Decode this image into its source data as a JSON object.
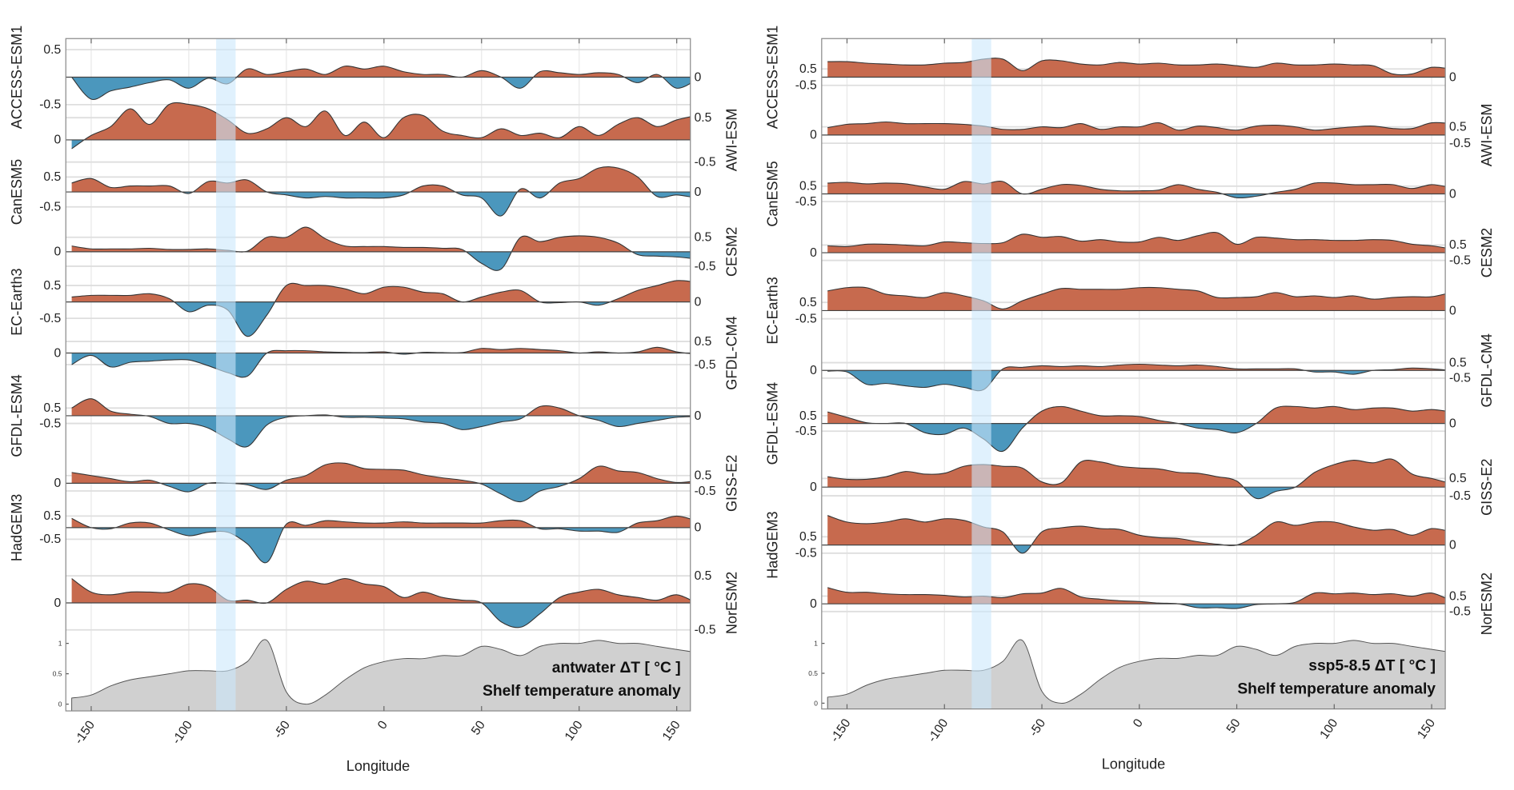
{
  "chart_data": [
    {
      "type": "area",
      "title": "antwater ΔT [ °C ]",
      "subtitle": "Shelf temperature anomaly",
      "xlabel": "Longitude",
      "xlim": [
        -163,
        157
      ],
      "xticks": [
        -150,
        -100,
        -50,
        0,
        50,
        100,
        150
      ],
      "yticks": [
        -0.5,
        0,
        0.5
      ],
      "grid": true,
      "highlight_band": [
        -86,
        -76
      ],
      "colors": {
        "positive": "#c76a4e",
        "negative": "#4b97bd",
        "band": "#cbe7fb",
        "land": "#d0d0d0"
      },
      "x": [
        -160,
        -150,
        -140,
        -130,
        -120,
        -110,
        -100,
        -90,
        -80,
        -70,
        -60,
        -50,
        -40,
        -30,
        -20,
        -10,
        0,
        10,
        20,
        30,
        40,
        50,
        60,
        70,
        80,
        90,
        100,
        110,
        120,
        130,
        140,
        150,
        160
      ],
      "series": [
        {
          "name": "ACCESS-ESM1",
          "values": [
            0,
            -0.4,
            -0.25,
            -0.18,
            -0.1,
            -0.05,
            -0.2,
            -0.02,
            -0.12,
            0.15,
            0.05,
            0.1,
            0.15,
            0.05,
            0.2,
            0.15,
            0.2,
            0.1,
            0.05,
            0.05,
            0,
            0.12,
            0,
            -0.2,
            0.1,
            0.08,
            0.05,
            0.08,
            0.05,
            -0.1,
            0.05,
            -0.2,
            -0.05
          ]
        },
        {
          "name": "AWI-ESM",
          "values": [
            -0.2,
            0.1,
            0.3,
            0.7,
            0.35,
            0.8,
            0.8,
            0.7,
            0.45,
            0.15,
            0.25,
            0.5,
            0.3,
            0.65,
            0.1,
            0.4,
            0.05,
            0.5,
            0.55,
            0.2,
            0.1,
            0.05,
            0.25,
            0.1,
            0.15,
            0.05,
            0.3,
            0.1,
            0.35,
            0.5,
            0.3,
            0.45,
            0.55
          ]
        },
        {
          "name": "CanESM5",
          "values": [
            0.3,
            0.45,
            0.15,
            0.2,
            0.2,
            0.2,
            -0.05,
            0.35,
            0.3,
            0.4,
            0,
            -0.1,
            -0.2,
            -0.15,
            -0.2,
            -0.2,
            -0.2,
            -0.1,
            0.2,
            0.2,
            -0.1,
            -0.2,
            -0.8,
            0.1,
            -0.2,
            0.3,
            0.45,
            0.8,
            0.8,
            0.5,
            -0.15,
            -0.1,
            -0.2
          ]
        },
        {
          "name": "CESM2",
          "values": [
            0.2,
            0.1,
            0.1,
            0.1,
            0.12,
            0.08,
            0.08,
            0.1,
            0.05,
            0.02,
            0.5,
            0.5,
            0.85,
            0.45,
            0.2,
            0.18,
            0.18,
            0.15,
            0.15,
            0.12,
            0.08,
            -0.4,
            -0.6,
            0.5,
            0.35,
            0.5,
            0.55,
            0.5,
            0.3,
            -0.1,
            -0.15,
            -0.18,
            -0.25
          ]
        },
        {
          "name": "EC-Earth3",
          "values": [
            0.15,
            0.2,
            0.2,
            0.2,
            0.25,
            0.1,
            -0.3,
            -0.1,
            -0.25,
            -1.05,
            -0.4,
            0.5,
            0.5,
            0.5,
            0.4,
            0.25,
            0.45,
            0.45,
            0.3,
            0.25,
            0,
            0.15,
            0.3,
            0.35,
            0,
            -0.02,
            0,
            -0.1,
            0.1,
            0.35,
            0.5,
            0.65,
            0.6
          ]
        },
        {
          "name": "GFDL-CM4",
          "values": [
            -0.5,
            -0.1,
            -0.6,
            -0.4,
            -0.35,
            -0.3,
            -0.3,
            -0.55,
            -0.85,
            -1.0,
            0,
            0.1,
            0.1,
            0.05,
            0.03,
            0.02,
            0.05,
            -0.05,
            0.03,
            0.02,
            0.02,
            0.2,
            0.15,
            0.2,
            0.15,
            0.1,
            0,
            0.05,
            0,
            0.05,
            0.25,
            0.05,
            -0.05
          ]
        },
        {
          "name": "GFDL-ESM4",
          "values": [
            0.5,
            1.1,
            0.3,
            0.1,
            -0.05,
            -0.5,
            -0.5,
            -0.8,
            -1.5,
            -2.0,
            -0.6,
            -0.1,
            0,
            0.05,
            -0.1,
            -0.1,
            -0.15,
            -0.2,
            -0.4,
            -0.5,
            -0.9,
            -0.7,
            -0.4,
            -0.2,
            0.6,
            0.5,
            0,
            -0.3,
            -0.7,
            -0.5,
            -0.3,
            -0.1,
            -0.05
          ]
        },
        {
          "name": "GISS-E2",
          "values": [
            0.7,
            0.5,
            0.3,
            0.1,
            0.2,
            -0.2,
            -0.55,
            0,
            0,
            -0.1,
            -0.4,
            0.2,
            0.5,
            1.2,
            1.3,
            0.95,
            0.9,
            0.85,
            0.55,
            0.35,
            0.2,
            -0.05,
            -0.7,
            -1.2,
            -0.5,
            -0.2,
            0.3,
            1.1,
            0.8,
            0.7,
            0.3,
            0.05,
            0.15
          ]
        },
        {
          "name": "HadGEM3",
          "values": [
            0.4,
            0,
            -0.05,
            0.2,
            0.2,
            -0.1,
            -0.35,
            -0.2,
            -0.2,
            -0.7,
            -1.5,
            0.15,
            0.1,
            0.3,
            0.25,
            0.2,
            0.2,
            0.25,
            0.2,
            0.2,
            0.2,
            0.2,
            0.3,
            0.3,
            -0.05,
            -0.05,
            -0.15,
            -0.15,
            -0.2,
            0.2,
            0.3,
            0.5,
            0.3
          ]
        },
        {
          "name": "NorESM2",
          "values": [
            0.45,
            0.2,
            0.15,
            0.2,
            0.2,
            0.2,
            0.35,
            0.3,
            0.05,
            0.05,
            0,
            0.25,
            0.4,
            0.35,
            0.45,
            0.35,
            0.3,
            0.1,
            0.2,
            0.1,
            0.05,
            0,
            -0.35,
            -0.45,
            -0.2,
            0.1,
            0.2,
            0.25,
            0.15,
            0.1,
            0.05,
            0.15,
            0
          ]
        }
      ],
      "coastline": {
        "yticks": [
          0,
          0.5,
          1
        ],
        "values": [
          0.1,
          0.15,
          0.3,
          0.4,
          0.45,
          0.5,
          0.55,
          0.55,
          0.55,
          0.7,
          1.05,
          0.2,
          0.0,
          0.15,
          0.4,
          0.6,
          0.7,
          0.75,
          0.75,
          0.8,
          0.8,
          0.95,
          0.9,
          0.8,
          0.95,
          1.0,
          1.0,
          1.05,
          1.0,
          1.0,
          0.95,
          0.9,
          0.85
        ]
      }
    },
    {
      "type": "area",
      "title": "ssp5-8.5 ΔT [ °C ]",
      "subtitle": "Shelf temperature anomaly",
      "xlabel": "Longitude",
      "xlim": [
        -163,
        157
      ],
      "xticks": [
        -150,
        -100,
        -50,
        0,
        50,
        100,
        150
      ],
      "yticks": [
        -0.5,
        0,
        0.5
      ],
      "grid": true,
      "highlight_band": [
        -86,
        -76
      ],
      "colors": {
        "positive": "#c76a4e",
        "negative": "#4b97bd",
        "band": "#cbe7fb",
        "land": "#d0d0d0"
      },
      "x": [
        -160,
        -150,
        -140,
        -130,
        -120,
        -110,
        -100,
        -90,
        -80,
        -70,
        -60,
        -50,
        -40,
        -30,
        -20,
        -10,
        0,
        10,
        20,
        30,
        40,
        50,
        60,
        70,
        80,
        90,
        100,
        110,
        120,
        130,
        140,
        150,
        160
      ],
      "series": [
        {
          "name": "ACCESS-ESM1",
          "values": [
            0.95,
            0.95,
            0.85,
            0.8,
            0.75,
            0.75,
            0.85,
            0.9,
            1.1,
            1.1,
            0.4,
            1.0,
            1.0,
            0.8,
            0.75,
            0.9,
            0.8,
            0.85,
            0.75,
            0.75,
            0.8,
            0.7,
            0.6,
            0.85,
            0.75,
            0.75,
            0.8,
            0.75,
            0.7,
            0.2,
            0.2,
            0.6,
            0.5
          ]
        },
        {
          "name": "AWI-ESM",
          "values": [
            0.45,
            0.65,
            0.7,
            0.8,
            0.7,
            0.7,
            0.7,
            0.65,
            0.55,
            0.35,
            0.35,
            0.5,
            0.45,
            0.7,
            0.35,
            0.5,
            0.5,
            0.75,
            0.3,
            0.55,
            0.45,
            0.3,
            0.55,
            0.6,
            0.5,
            0.3,
            0.4,
            0.5,
            0.55,
            0.4,
            0.4,
            0.75,
            0.7
          ]
        },
        {
          "name": "CanESM5",
          "values": [
            0.7,
            0.75,
            0.65,
            0.7,
            0.65,
            0.45,
            0.3,
            0.8,
            0.65,
            0.8,
            0,
            0.3,
            0.6,
            0.55,
            0.3,
            0.2,
            0.2,
            0.25,
            0.6,
            0.3,
            0.1,
            -0.25,
            -0.15,
            0.1,
            0.3,
            0.7,
            0.7,
            0.6,
            0.6,
            0.6,
            0.35,
            0.6,
            0.4
          ]
        },
        {
          "name": "CESM2",
          "values": [
            0.45,
            0.4,
            0.55,
            0.55,
            0.5,
            0.45,
            0.7,
            0.65,
            0.6,
            0.65,
            1.2,
            1.0,
            1.05,
            0.75,
            0.85,
            0.7,
            0.7,
            1.0,
            0.8,
            1.1,
            1.3,
            0.55,
            1.0,
            0.95,
            0.85,
            0.85,
            0.8,
            0.8,
            0.85,
            0.8,
            0.55,
            0.45,
            0.25
          ]
        },
        {
          "name": "EC-Earth3",
          "values": [
            1.2,
            1.4,
            1.4,
            1.0,
            0.9,
            0.8,
            1.1,
            0.9,
            0.6,
            0.1,
            0.6,
            1.0,
            1.35,
            1.3,
            1.3,
            1.3,
            1.4,
            1.4,
            1.3,
            1.2,
            0.8,
            0.8,
            0.85,
            1.1,
            0.85,
            0.9,
            0.8,
            0.9,
            0.7,
            0.8,
            0.85,
            0.85,
            1.1
          ]
        },
        {
          "name": "GFDL-CM4",
          "values": [
            -0.05,
            -0.1,
            -0.9,
            -0.85,
            -1.0,
            -1.1,
            -0.9,
            -1.1,
            -1.25,
            0.1,
            0.2,
            0.3,
            0.25,
            0.3,
            0.25,
            0.35,
            0.4,
            0.35,
            0.3,
            0.35,
            0.25,
            0.1,
            0.1,
            0.1,
            0.1,
            -0.1,
            -0.1,
            -0.25,
            0,
            0.05,
            0.15,
            0.1,
            0
          ]
        },
        {
          "name": "GFDL-ESM4",
          "values": [
            0.75,
            0.4,
            0.05,
            0,
            0,
            -0.6,
            -0.7,
            -0.3,
            -1.0,
            -1.8,
            -0.3,
            0.8,
            1.1,
            0.8,
            0.5,
            0.5,
            0.45,
            0.2,
            0,
            -0.3,
            -0.4,
            -0.6,
            0,
            1.0,
            1.1,
            1.0,
            1.1,
            0.9,
            1.0,
            1.0,
            0.8,
            0.9,
            0.75
          ]
        },
        {
          "name": "GISS-E2",
          "values": [
            0.6,
            0.45,
            0.45,
            0.6,
            0.9,
            0.75,
            0.8,
            1.2,
            1.3,
            1.2,
            1.1,
            0.3,
            0.25,
            1.45,
            1.45,
            1.2,
            1.1,
            1.05,
            0.85,
            0.8,
            0.6,
            0.35,
            -0.65,
            -0.25,
            0,
            0.85,
            1.3,
            1.55,
            1.4,
            1.6,
            0.75,
            0.5,
            0.2
          ]
        },
        {
          "name": "HadGEM3",
          "values": [
            1.8,
            1.4,
            1.3,
            1.4,
            1.6,
            1.4,
            1.6,
            1.5,
            1.1,
            0.8,
            -0.5,
            0.8,
            1.05,
            1.15,
            1.0,
            0.95,
            0.6,
            0.45,
            0.4,
            0.2,
            0.05,
            0,
            0.6,
            1.4,
            1.2,
            1.4,
            1.4,
            1.1,
            0.9,
            0.95,
            0.6,
            1.0,
            0.8
          ]
        },
        {
          "name": "NorESM2",
          "values": [
            1.05,
            0.75,
            0.75,
            0.65,
            0.6,
            0.6,
            0.55,
            0.45,
            0.5,
            0.4,
            0.65,
            0.7,
            1.0,
            0.45,
            0.3,
            0.2,
            0.15,
            0.05,
            0,
            -0.25,
            -0.25,
            -0.3,
            -0.05,
            0,
            0.1,
            0.7,
            0.65,
            0.7,
            0.6,
            0.65,
            0.5,
            0.7,
            0.2
          ]
        }
      ],
      "coastline": {
        "yticks": [
          0,
          0.5,
          1
        ],
        "values": [
          0.1,
          0.15,
          0.3,
          0.4,
          0.45,
          0.5,
          0.55,
          0.55,
          0.55,
          0.7,
          1.05,
          0.2,
          0.0,
          0.15,
          0.4,
          0.6,
          0.7,
          0.75,
          0.75,
          0.8,
          0.8,
          0.95,
          0.9,
          0.8,
          0.95,
          1.0,
          1.0,
          1.05,
          1.0,
          1.0,
          0.95,
          0.9,
          0.85
        ]
      }
    }
  ]
}
